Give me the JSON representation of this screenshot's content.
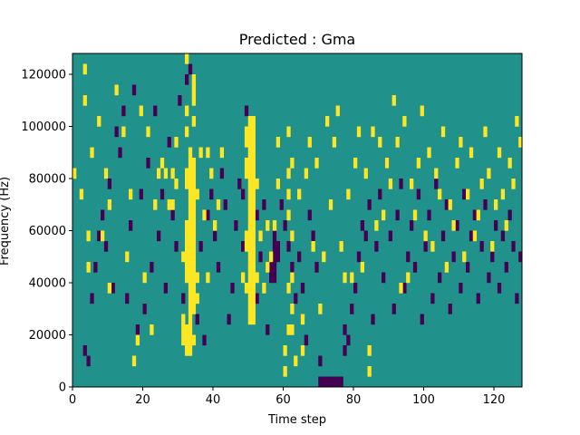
{
  "chart_data": {
    "type": "heatmap",
    "title": "Predicted : Gma",
    "xlabel": "Time step",
    "ylabel": "Frequency (Hz)",
    "xlim": [
      0,
      128
    ],
    "ylim": [
      0,
      128000
    ],
    "xticks": [
      0,
      20,
      40,
      60,
      80,
      100,
      120
    ],
    "yticks": [
      0,
      20000,
      40000,
      60000,
      80000,
      100000,
      120000
    ],
    "grid": false,
    "legend": "none",
    "background_value_color": "#21918c",
    "cell_height_hz": 4000,
    "palette": {
      "high": "#fde725",
      "low": "#440154",
      "mid": "#21918c"
    },
    "cells": {
      "high": [
        [
          0,
          20
        ],
        [
          2,
          18
        ],
        [
          3,
          30
        ],
        [
          3,
          27
        ],
        [
          4,
          14
        ],
        [
          4,
          11
        ],
        [
          5,
          22
        ],
        [
          7,
          25
        ],
        [
          8,
          14
        ],
        [
          9,
          20
        ],
        [
          10,
          9
        ],
        [
          10,
          17
        ],
        [
          12,
          28
        ],
        [
          14,
          24
        ],
        [
          15,
          12
        ],
        [
          16,
          18
        ],
        [
          17,
          2
        ],
        [
          18,
          4
        ],
        [
          19,
          26
        ],
        [
          20,
          10
        ],
        [
          21,
          24
        ],
        [
          22,
          5
        ],
        [
          23,
          17
        ],
        [
          24,
          20
        ],
        [
          25,
          21
        ],
        [
          26,
          20
        ],
        [
          27,
          17
        ],
        [
          28,
          20
        ],
        [
          28,
          17
        ],
        [
          29,
          23
        ],
        [
          29,
          19
        ],
        [
          31,
          4
        ],
        [
          31,
          5
        ],
        [
          31,
          6
        ],
        [
          31,
          12
        ],
        [
          32,
          3
        ],
        [
          32,
          4
        ],
        [
          32,
          5
        ],
        [
          32,
          10
        ],
        [
          32,
          11
        ],
        [
          32,
          12
        ],
        [
          32,
          13
        ],
        [
          32,
          14
        ],
        [
          32,
          15
        ],
        [
          32,
          19
        ],
        [
          32,
          20
        ],
        [
          32,
          24
        ],
        [
          32,
          26
        ],
        [
          32,
          31
        ],
        [
          33,
          3
        ],
        [
          33,
          4
        ],
        [
          33,
          5
        ],
        [
          33,
          6
        ],
        [
          33,
          7
        ],
        [
          33,
          8
        ],
        [
          33,
          9
        ],
        [
          33,
          10
        ],
        [
          33,
          11
        ],
        [
          33,
          12
        ],
        [
          33,
          13
        ],
        [
          33,
          14
        ],
        [
          33,
          15
        ],
        [
          33,
          16
        ],
        [
          33,
          17
        ],
        [
          33,
          18
        ],
        [
          33,
          19
        ],
        [
          33,
          20
        ],
        [
          33,
          21
        ],
        [
          33,
          22
        ],
        [
          34,
          4
        ],
        [
          34,
          7
        ],
        [
          34,
          8
        ],
        [
          34,
          9
        ],
        [
          34,
          10
        ],
        [
          34,
          11
        ],
        [
          34,
          12
        ],
        [
          34,
          13
        ],
        [
          34,
          14
        ],
        [
          34,
          15
        ],
        [
          34,
          16
        ],
        [
          34,
          17
        ],
        [
          34,
          18
        ],
        [
          34,
          19
        ],
        [
          34,
          20
        ],
        [
          34,
          21
        ],
        [
          34,
          25
        ],
        [
          34,
          27
        ],
        [
          34,
          28
        ],
        [
          34,
          29
        ],
        [
          35,
          8
        ],
        [
          35,
          10
        ],
        [
          35,
          18
        ],
        [
          36,
          22
        ],
        [
          37,
          16
        ],
        [
          38,
          10
        ],
        [
          38,
          22
        ],
        [
          39,
          20
        ],
        [
          40,
          15
        ],
        [
          41,
          17
        ],
        [
          42,
          22
        ],
        [
          48,
          10
        ],
        [
          49,
          9
        ],
        [
          49,
          13
        ],
        [
          49,
          14
        ],
        [
          49,
          20
        ],
        [
          49,
          21
        ],
        [
          49,
          23
        ],
        [
          49,
          24
        ],
        [
          50,
          6
        ],
        [
          50,
          7
        ],
        [
          50,
          8
        ],
        [
          50,
          9
        ],
        [
          50,
          10
        ],
        [
          50,
          11
        ],
        [
          50,
          12
        ],
        [
          50,
          13
        ],
        [
          50,
          14
        ],
        [
          50,
          15
        ],
        [
          50,
          16
        ],
        [
          50,
          17
        ],
        [
          50,
          18
        ],
        [
          50,
          19
        ],
        [
          50,
          20
        ],
        [
          50,
          21
        ],
        [
          50,
          22
        ],
        [
          50,
          23
        ],
        [
          50,
          24
        ],
        [
          50,
          25
        ],
        [
          51,
          6
        ],
        [
          51,
          7
        ],
        [
          51,
          8
        ],
        [
          51,
          9
        ],
        [
          51,
          10
        ],
        [
          51,
          11
        ],
        [
          51,
          12
        ],
        [
          51,
          13
        ],
        [
          51,
          14
        ],
        [
          51,
          15
        ],
        [
          51,
          16
        ],
        [
          51,
          17
        ],
        [
          51,
          18
        ],
        [
          51,
          19
        ],
        [
          51,
          20
        ],
        [
          51,
          21
        ],
        [
          51,
          22
        ],
        [
          51,
          23
        ],
        [
          51,
          24
        ],
        [
          51,
          25
        ],
        [
          52,
          10
        ],
        [
          52,
          19
        ],
        [
          53,
          14
        ],
        [
          54,
          9
        ],
        [
          55,
          11
        ],
        [
          55,
          15
        ],
        [
          56,
          12
        ],
        [
          57,
          15
        ],
        [
          58,
          19
        ],
        [
          58,
          23
        ],
        [
          60,
          3
        ],
        [
          60,
          1
        ],
        [
          61,
          5
        ],
        [
          61,
          9
        ],
        [
          61,
          16
        ],
        [
          61,
          18
        ],
        [
          61,
          20
        ],
        [
          61,
          24
        ],
        [
          62,
          5
        ],
        [
          62,
          7
        ],
        [
          62,
          10
        ],
        [
          62,
          14
        ],
        [
          62,
          21
        ],
        [
          63,
          2
        ],
        [
          64,
          18
        ],
        [
          65,
          3
        ],
        [
          65,
          6
        ],
        [
          66,
          20
        ],
        [
          67,
          23
        ],
        [
          68,
          13
        ],
        [
          69,
          21
        ],
        [
          70,
          7
        ],
        [
          71,
          12
        ],
        [
          72,
          25
        ],
        [
          73,
          17
        ],
        [
          74,
          23
        ],
        [
          75,
          26
        ],
        [
          76,
          13
        ],
        [
          77,
          10
        ],
        [
          78,
          18
        ],
        [
          79,
          10
        ],
        [
          80,
          21
        ],
        [
          81,
          24
        ],
        [
          82,
          11
        ],
        [
          83,
          20
        ],
        [
          84,
          1
        ],
        [
          84,
          3
        ],
        [
          85,
          24
        ],
        [
          86,
          15
        ],
        [
          87,
          23
        ],
        [
          88,
          16
        ],
        [
          89,
          21
        ],
        [
          90,
          19
        ],
        [
          91,
          27
        ],
        [
          92,
          23
        ],
        [
          93,
          9
        ],
        [
          94,
          25
        ],
        [
          95,
          10
        ],
        [
          96,
          19
        ],
        [
          97,
          16
        ],
        [
          98,
          21
        ],
        [
          99,
          26
        ],
        [
          100,
          14
        ],
        [
          101,
          22
        ],
        [
          102,
          13
        ],
        [
          103,
          20
        ],
        [
          104,
          18
        ],
        [
          105,
          24
        ],
        [
          106,
          11
        ],
        [
          107,
          17
        ],
        [
          108,
          15
        ],
        [
          109,
          21
        ],
        [
          110,
          23
        ],
        [
          111,
          12
        ],
        [
          112,
          18
        ],
        [
          113,
          22
        ],
        [
          114,
          14
        ],
        [
          115,
          16
        ],
        [
          116,
          19
        ],
        [
          117,
          24
        ],
        [
          118,
          20
        ],
        [
          119,
          13
        ],
        [
          120,
          17
        ],
        [
          121,
          22
        ],
        [
          122,
          18
        ],
        [
          123,
          15
        ],
        [
          124,
          21
        ],
        [
          125,
          19
        ],
        [
          126,
          25
        ],
        [
          127,
          23
        ]
      ],
      "low": [
        [
          3,
          3
        ],
        [
          4,
          2
        ],
        [
          5,
          8
        ],
        [
          6,
          11
        ],
        [
          7,
          14
        ],
        [
          8,
          16
        ],
        [
          9,
          13
        ],
        [
          10,
          19
        ],
        [
          11,
          9
        ],
        [
          12,
          24
        ],
        [
          13,
          22
        ],
        [
          14,
          26
        ],
        [
          15,
          8
        ],
        [
          16,
          15
        ],
        [
          17,
          28
        ],
        [
          18,
          5
        ],
        [
          19,
          18
        ],
        [
          20,
          7
        ],
        [
          21,
          21
        ],
        [
          22,
          11
        ],
        [
          23,
          26
        ],
        [
          24,
          14
        ],
        [
          25,
          18
        ],
        [
          26,
          9
        ],
        [
          27,
          23
        ],
        [
          28,
          16
        ],
        [
          29,
          13
        ],
        [
          30,
          27
        ],
        [
          31,
          8
        ],
        [
          32,
          29
        ],
        [
          33,
          30
        ],
        [
          35,
          6
        ],
        [
          36,
          13
        ],
        [
          37,
          4
        ],
        [
          38,
          16
        ],
        [
          39,
          18
        ],
        [
          40,
          14
        ],
        [
          41,
          11
        ],
        [
          42,
          20
        ],
        [
          43,
          17
        ],
        [
          44,
          6
        ],
        [
          45,
          9
        ],
        [
          46,
          15
        ],
        [
          47,
          19
        ],
        [
          48,
          13
        ],
        [
          48,
          18
        ],
        [
          49,
          26
        ],
        [
          52,
          8
        ],
        [
          52,
          16
        ],
        [
          53,
          12
        ],
        [
          54,
          17
        ],
        [
          55,
          5
        ],
        [
          56,
          10
        ],
        [
          56,
          11
        ],
        [
          56,
          12
        ],
        [
          57,
          10
        ],
        [
          57,
          11
        ],
        [
          57,
          12
        ],
        [
          57,
          13
        ],
        [
          57,
          14
        ],
        [
          58,
          12
        ],
        [
          58,
          13
        ],
        [
          59,
          17
        ],
        [
          60,
          15
        ],
        [
          61,
          13
        ],
        [
          62,
          11
        ],
        [
          63,
          8
        ],
        [
          64,
          12
        ],
        [
          65,
          9
        ],
        [
          66,
          4
        ],
        [
          67,
          16
        ],
        [
          68,
          14
        ],
        [
          69,
          11
        ],
        [
          70,
          2
        ],
        [
          70,
          0
        ],
        [
          71,
          0
        ],
        [
          72,
          0
        ],
        [
          73,
          0
        ],
        [
          74,
          0
        ],
        [
          75,
          0
        ],
        [
          76,
          0
        ],
        [
          77,
          5
        ],
        [
          77,
          3
        ],
        [
          78,
          4
        ],
        [
          79,
          7
        ],
        [
          80,
          9
        ],
        [
          81,
          12
        ],
        [
          82,
          15
        ],
        [
          83,
          14
        ],
        [
          84,
          17
        ],
        [
          85,
          6
        ],
        [
          86,
          13
        ],
        [
          87,
          18
        ],
        [
          88,
          10
        ],
        [
          89,
          21
        ],
        [
          90,
          14
        ],
        [
          91,
          7
        ],
        [
          92,
          16
        ],
        [
          93,
          19
        ],
        [
          94,
          9
        ],
        [
          95,
          12
        ],
        [
          96,
          15
        ],
        [
          97,
          11
        ],
        [
          98,
          18
        ],
        [
          99,
          6
        ],
        [
          100,
          13
        ],
        [
          101,
          16
        ],
        [
          102,
          8
        ],
        [
          103,
          19
        ],
        [
          104,
          10
        ],
        [
          105,
          14
        ],
        [
          106,
          17
        ],
        [
          107,
          7
        ],
        [
          108,
          12
        ],
        [
          109,
          15
        ],
        [
          110,
          9
        ],
        [
          111,
          18
        ],
        [
          112,
          11
        ],
        [
          113,
          14
        ],
        [
          114,
          16
        ],
        [
          115,
          8
        ],
        [
          116,
          13
        ],
        [
          117,
          17
        ],
        [
          118,
          10
        ],
        [
          119,
          12
        ],
        [
          120,
          15
        ],
        [
          121,
          9
        ],
        [
          122,
          14
        ],
        [
          123,
          11
        ],
        [
          124,
          16
        ],
        [
          125,
          13
        ],
        [
          126,
          8
        ],
        [
          127,
          12
        ]
      ]
    }
  }
}
